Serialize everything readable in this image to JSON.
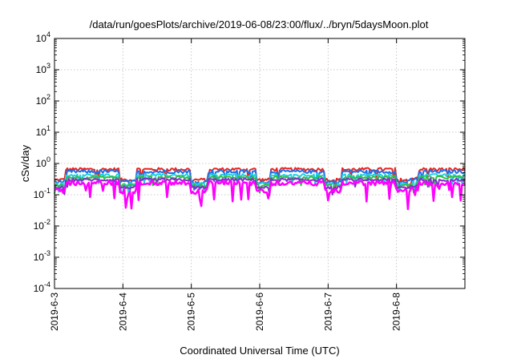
{
  "chart_data": {
    "type": "line",
    "title": "/data/run/goesPlots/archive/2019-06-08/23:00/flux/../bryn/5daysMoon.plot",
    "xlabel": "Coordinated Universal Time (UTC)",
    "ylabel": "cSv/day",
    "x_range": [
      "2019-06-03 00:00",
      "2019-06-09 00:00"
    ],
    "ylim": [
      0.0001,
      10000
    ],
    "yscale": "log",
    "grid": true,
    "x_ticks": [
      "2019-6-3",
      "2019-6-4",
      "2019-6-5",
      "2019-6-6",
      "2019-6-7",
      "2019-6-8"
    ],
    "y_ticks": [
      {
        "base": "10",
        "exp": "4"
      },
      {
        "base": "10",
        "exp": "3"
      },
      {
        "base": "10",
        "exp": "2"
      },
      {
        "base": "10",
        "exp": "1"
      },
      {
        "base": "10",
        "exp": "0"
      },
      {
        "base": "10",
        "exp": "-1"
      },
      {
        "base": "10",
        "exp": "-2"
      },
      {
        "base": "10",
        "exp": "-3"
      },
      {
        "base": "10",
        "exp": "-4"
      }
    ],
    "segments": [
      {
        "start": "2019-06-03 00:00",
        "end": "2019-06-03 04:00",
        "level": "low"
      },
      {
        "start": "2019-06-03 04:00",
        "end": "2019-06-03 23:00",
        "level": "high"
      },
      {
        "start": "2019-06-03 23:00",
        "end": "2019-06-04 05:00",
        "level": "low"
      },
      {
        "start": "2019-06-04 05:00",
        "end": "2019-06-05 00:00",
        "level": "high"
      },
      {
        "start": "2019-06-05 00:00",
        "end": "2019-06-05 06:00",
        "level": "low"
      },
      {
        "start": "2019-06-05 06:00",
        "end": "2019-06-05 23:00",
        "level": "high"
      },
      {
        "start": "2019-06-05 23:00",
        "end": "2019-06-06 04:00",
        "level": "low"
      },
      {
        "start": "2019-06-06 04:00",
        "end": "2019-06-06 23:00",
        "level": "high"
      },
      {
        "start": "2019-06-06 23:00",
        "end": "2019-06-07 05:00",
        "level": "low"
      },
      {
        "start": "2019-06-07 05:00",
        "end": "2019-06-08 00:00",
        "level": "high"
      },
      {
        "start": "2019-06-08 00:00",
        "end": "2019-06-08 05:00",
        "level": "low"
      },
      {
        "start": "2019-06-08 05:00",
        "end": "2019-06-08 08:00",
        "level": "mid"
      },
      {
        "start": "2019-06-08 08:00",
        "end": "2019-06-09 00:00",
        "level": "high"
      }
    ],
    "series": [
      {
        "color": "#e8251f",
        "values": {
          "high": 0.65,
          "mid": 0.35,
          "low": 0.3
        },
        "noise": 0.12
      },
      {
        "color": "#1f6fe8",
        "values": {
          "high": 0.55,
          "mid": 0.3,
          "low": 0.26
        },
        "noise": 0.12
      },
      {
        "color": "#20d0e0",
        "values": {
          "high": 0.42,
          "mid": 0.25,
          "low": 0.22
        },
        "noise": 0.1
      },
      {
        "color": "#30c040",
        "values": {
          "high": 0.36,
          "mid": 0.22,
          "low": 0.2
        },
        "noise": 0.1
      },
      {
        "color": "#8030c8",
        "values": {
          "high": 0.3,
          "mid": 0.19,
          "low": 0.17
        },
        "noise": 0.1
      },
      {
        "color": "#ff00ff",
        "values": {
          "high": 0.24,
          "mid": 0.15,
          "low": 0.13
        },
        "noise": 0.18
      }
    ]
  }
}
